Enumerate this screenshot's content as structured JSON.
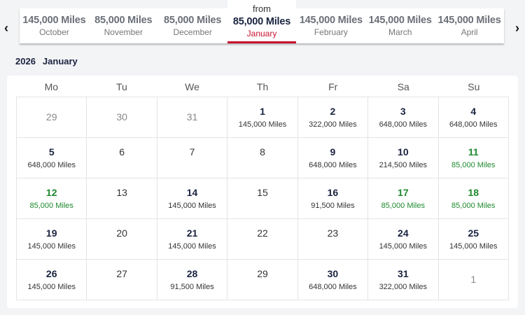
{
  "nav": {
    "prev_icon": "chevron-left-icon",
    "next_icon": "chevron-right-icon",
    "prev": "‹",
    "next": "›"
  },
  "months": [
    {
      "miles": "145,000 Miles",
      "name": "October"
    },
    {
      "miles": "85,000 Miles",
      "name": "November"
    },
    {
      "miles": "85,000 Miles",
      "name": "December"
    },
    {
      "from": "from",
      "miles": "85,000 Miles",
      "name": "January",
      "active": true
    },
    {
      "miles": "145,000 Miles",
      "name": "February"
    },
    {
      "miles": "145,000 Miles",
      "name": "March"
    },
    {
      "miles": "145,000 Miles",
      "name": "April"
    }
  ],
  "calendar": {
    "year": "2026",
    "month": "January",
    "weekdays": [
      "Mo",
      "Tu",
      "We",
      "Th",
      "Fr",
      "Sa",
      "Su"
    ],
    "colors": {
      "accent": "#c8102e",
      "lowest": "#1e8a2e",
      "text": "#1a2340"
    },
    "weeks": [
      [
        {
          "day": "29",
          "state": "out"
        },
        {
          "day": "30",
          "state": "out"
        },
        {
          "day": "31",
          "state": "out"
        },
        {
          "day": "1",
          "miles": "145,000 Miles"
        },
        {
          "day": "2",
          "miles": "322,000 Miles"
        },
        {
          "day": "3",
          "miles": "648,000 Miles"
        },
        {
          "day": "4",
          "miles": "648,000 Miles"
        }
      ],
      [
        {
          "day": "5",
          "miles": "648,000 Miles"
        },
        {
          "day": "6",
          "state": "none"
        },
        {
          "day": "7",
          "state": "none"
        },
        {
          "day": "8",
          "state": "none"
        },
        {
          "day": "9",
          "miles": "648,000 Miles"
        },
        {
          "day": "10",
          "miles": "214,500 Miles"
        },
        {
          "day": "11",
          "miles": "85,000 Miles",
          "state": "green"
        }
      ],
      [
        {
          "day": "12",
          "miles": "85,000 Miles",
          "state": "green"
        },
        {
          "day": "13",
          "state": "none"
        },
        {
          "day": "14",
          "miles": "145,000 Miles"
        },
        {
          "day": "15",
          "state": "none"
        },
        {
          "day": "16",
          "miles": "91,500 Miles"
        },
        {
          "day": "17",
          "miles": "85,000 Miles",
          "state": "green"
        },
        {
          "day": "18",
          "miles": "85,000 Miles",
          "state": "green"
        }
      ],
      [
        {
          "day": "19",
          "miles": "145,000 Miles"
        },
        {
          "day": "20",
          "state": "none"
        },
        {
          "day": "21",
          "miles": "145,000 Miles"
        },
        {
          "day": "22",
          "state": "none"
        },
        {
          "day": "23",
          "state": "none"
        },
        {
          "day": "24",
          "miles": "145,000 Miles"
        },
        {
          "day": "25",
          "miles": "145,000 Miles"
        }
      ],
      [
        {
          "day": "26",
          "miles": "145,000 Miles"
        },
        {
          "day": "27",
          "state": "none"
        },
        {
          "day": "28",
          "miles": "91,500 Miles"
        },
        {
          "day": "29",
          "state": "none"
        },
        {
          "day": "30",
          "miles": "648,000 Miles"
        },
        {
          "day": "31",
          "miles": "322,000 Miles"
        },
        {
          "day": "1",
          "state": "out"
        }
      ]
    ]
  }
}
